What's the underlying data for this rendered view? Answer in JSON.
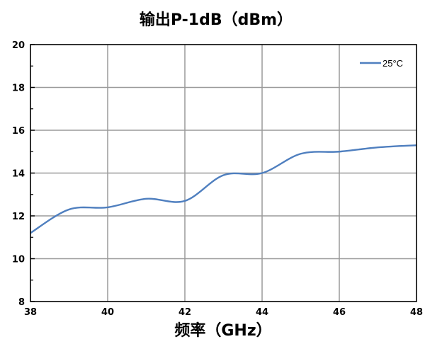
{
  "chart_data": {
    "type": "line",
    "title": "输出P-1dB（dBm）",
    "xlabel": "频率（GHz）",
    "ylabel": "",
    "xlim": [
      38,
      48
    ],
    "ylim": [
      8,
      20
    ],
    "x_ticks": [
      38,
      40,
      42,
      44,
      46,
      48
    ],
    "y_ticks": [
      8,
      10,
      12,
      14,
      16,
      18,
      20
    ],
    "grid": true,
    "legend_position": "top-right",
    "series": [
      {
        "name": "25°C",
        "color": "#4f7fbf",
        "x": [
          38,
          39,
          40,
          41,
          42,
          43,
          44,
          45,
          46,
          47,
          48
        ],
        "y": [
          11.2,
          12.3,
          12.4,
          12.8,
          12.7,
          13.9,
          14.0,
          14.9,
          15.0,
          15.2,
          15.3
        ]
      }
    ]
  }
}
